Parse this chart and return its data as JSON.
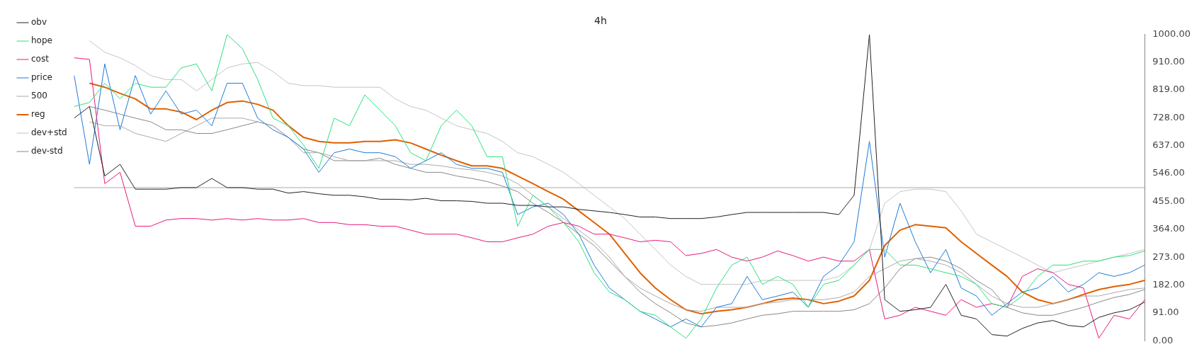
{
  "chart_data": {
    "type": "line",
    "title": "4h",
    "categories": [
      null,
      null,
      null,
      null,
      null,
      null,
      null,
      null,
      null,
      null,
      null,
      null,
      null,
      null,
      null,
      null,
      null,
      null,
      null,
      null,
      null,
      null,
      null,
      null,
      null,
      null,
      null,
      null,
      null,
      null,
      null,
      null,
      null,
      null,
      null,
      null,
      null,
      null,
      null,
      null,
      null,
      null,
      null,
      null,
      null,
      null,
      null,
      null,
      null,
      null,
      null,
      null,
      null,
      null,
      null,
      null,
      null,
      null,
      null,
      null,
      null,
      null,
      null,
      null,
      null,
      null,
      null,
      null,
      null,
      null,
      null
    ],
    "series": [
      {
        "name": "obv",
        "color": "#222222",
        "values": [
          727,
          765,
          538,
          576,
          495,
          495,
          495,
          500,
          500,
          530,
          500,
          500,
          495,
          495,
          482,
          487,
          480,
          475,
          475,
          470,
          462,
          462,
          460,
          465,
          457,
          457,
          455,
          449,
          449,
          442,
          442,
          437,
          437,
          429,
          424,
          419,
          412,
          404,
          404,
          399,
          399,
          399,
          404,
          412,
          419,
          419,
          419,
          419,
          419,
          419,
          412,
          475,
          1000,
          134,
          96,
          101,
          109,
          184,
          83,
          71,
          20,
          15,
          40,
          58,
          66,
          50,
          45,
          76,
          91,
          101,
          126
        ]
      },
      {
        "name": "hope",
        "color": "#2ee07a",
        "values": [
          765,
          778,
          841,
          790,
          841,
          828,
          828,
          891,
          904,
          816,
          1000,
          954,
          853,
          727,
          702,
          639,
          563,
          727,
          702,
          803,
          753,
          702,
          614,
          588,
          702,
          753,
          702,
          601,
          601,
          374,
          475,
          437,
          386,
          323,
          222,
          159,
          134,
          96,
          83,
          45,
          8,
          71,
          172,
          247,
          273,
          184,
          210,
          184,
          109,
          184,
          197,
          247,
          298,
          298,
          247,
          247,
          235,
          222,
          210,
          184,
          121,
          109,
          146,
          210,
          247,
          247,
          260,
          260,
          273,
          278,
          293
        ]
      },
      {
        "name": "cost",
        "color": "#e8197d",
        "values": [
          924,
          919,
          513,
          550,
          374,
          374,
          394,
          399,
          399,
          394,
          399,
          394,
          399,
          394,
          394,
          399,
          386,
          386,
          379,
          379,
          374,
          374,
          361,
          348,
          348,
          348,
          336,
          323,
          323,
          336,
          348,
          374,
          386,
          374,
          348,
          348,
          336,
          323,
          328,
          323,
          278,
          285,
          298,
          273,
          260,
          273,
          293,
          278,
          260,
          273,
          260,
          260,
          298,
          71,
          83,
          109,
          96,
          83,
          134,
          109,
          121,
          109,
          210,
          235,
          222,
          184,
          172,
          8,
          83,
          71,
          134
        ]
      },
      {
        "name": "price",
        "color": "#1f7ad8",
        "values": [
          866,
          576,
          904,
          689,
          866,
          740,
          816,
          740,
          753,
          702,
          841,
          841,
          727,
          689,
          664,
          626,
          550,
          614,
          626,
          614,
          614,
          601,
          563,
          588,
          614,
          576,
          563,
          563,
          550,
          412,
          437,
          449,
          412,
          348,
          247,
          172,
          134,
          96,
          71,
          45,
          71,
          45,
          109,
          121,
          210,
          134,
          146,
          159,
          109,
          210,
          247,
          323,
          651,
          273,
          449,
          323,
          222,
          298,
          172,
          146,
          83,
          121,
          159,
          172,
          210,
          159,
          184,
          222,
          210,
          222,
          247
        ]
      },
      {
        "name": "500",
        "color": "#aaaaaa",
        "values": [
          null,
          715,
          702,
          702,
          677,
          664,
          651,
          677,
          702,
          727,
          727,
          727,
          715,
          702,
          664,
          614,
          614,
          601,
          588,
          588,
          588,
          588,
          576,
          576,
          571,
          563,
          558,
          550,
          538,
          513,
          475,
          437,
          399,
          361,
          323,
          273,
          210,
          172,
          146,
          121,
          101,
          96,
          109,
          109,
          109,
          121,
          126,
          134,
          134,
          134,
          141,
          159,
          210,
          235,
          260,
          268,
          260,
          247,
          222,
          184,
          146,
          121,
          109,
          109,
          121,
          134,
          146,
          146,
          157,
          167,
          172
        ]
      },
      {
        "name": "reg",
        "color": "#e06000",
        "values": [
          null,
          841,
          828,
          808,
          790,
          757,
          757,
          747,
          722,
          753,
          778,
          783,
          772,
          753,
          702,
          664,
          651,
          646,
          646,
          651,
          651,
          656,
          646,
          626,
          606,
          588,
          571,
          571,
          563,
          538,
          513,
          487,
          462,
          424,
          386,
          348,
          285,
          222,
          172,
          134,
          101,
          88,
          96,
          101,
          109,
          121,
          134,
          139,
          134,
          121,
          129,
          146,
          197,
          311,
          361,
          379,
          374,
          369,
          323,
          285,
          247,
          210,
          159,
          134,
          121,
          134,
          151,
          167,
          177,
          184,
          197
        ]
      },
      {
        "name": "dev+std",
        "color": "#c4c4c4",
        "values": [
          null,
          980,
          942,
          924,
          899,
          866,
          853,
          853,
          816,
          853,
          891,
          904,
          909,
          879,
          841,
          833,
          833,
          828,
          828,
          828,
          828,
          790,
          765,
          753,
          727,
          702,
          689,
          677,
          651,
          614,
          601,
          576,
          550,
          513,
          475,
          437,
          399,
          348,
          298,
          247,
          210,
          184,
          184,
          184,
          184,
          197,
          197,
          197,
          197,
          197,
          210,
          247,
          298,
          449,
          487,
          495,
          495,
          487,
          424,
          348,
          323,
          298,
          273,
          247,
          222,
          235,
          247,
          260,
          273,
          285,
          298
        ]
      },
      {
        "name": "dev-std",
        "color": "#888888",
        "values": [
          null,
          765,
          753,
          740,
          727,
          715,
          689,
          689,
          677,
          677,
          689,
          702,
          715,
          702,
          664,
          626,
          614,
          588,
          588,
          588,
          596,
          576,
          563,
          550,
          550,
          538,
          530,
          520,
          505,
          487,
          449,
          419,
          386,
          348,
          311,
          260,
          210,
          159,
          121,
          91,
          58,
          45,
          50,
          58,
          71,
          83,
          88,
          96,
          96,
          96,
          96,
          101,
          121,
          172,
          235,
          268,
          273,
          260,
          235,
          197,
          167,
          109,
          91,
          83,
          83,
          96,
          109,
          126,
          141,
          151,
          167
        ]
      }
    ],
    "ylim": [
      0,
      1000
    ],
    "yticks": [
      {
        "value": 0,
        "label": "0.00"
      },
      {
        "value": 91,
        "label": "91.00"
      },
      {
        "value": 182,
        "label": "182.00"
      },
      {
        "value": 273,
        "label": "273.00"
      },
      {
        "value": 364,
        "label": "364.00"
      },
      {
        "value": 455,
        "label": "455.00"
      },
      {
        "value": 546,
        "label": "546.00"
      },
      {
        "value": 637,
        "label": "637.00"
      },
      {
        "value": 728,
        "label": "728.00"
      },
      {
        "value": 819,
        "label": "819.00"
      },
      {
        "value": 910,
        "label": "910.00"
      },
      {
        "value": 1000,
        "label": "1000.00"
      }
    ],
    "ref_lines": [
      {
        "axis": "y",
        "value": 500,
        "color": "#aaaaaa"
      }
    ],
    "grid": false,
    "legend": "top left",
    "tick_labels": "y"
  }
}
